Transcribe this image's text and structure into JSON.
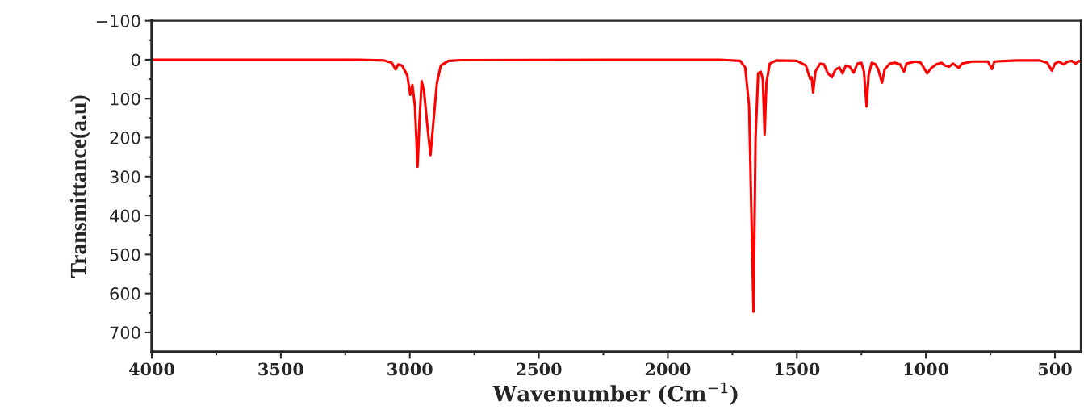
{
  "chart_data": {
    "type": "line",
    "xlabel": "Wavenumber (Cm$^{−1}$)",
    "ylabel": "Transmittance(a.u)",
    "x": [
      4000,
      3200,
      3100,
      3070,
      3055,
      3045,
      3030,
      3010,
      2998,
      2990,
      2980,
      2970,
      2962,
      2954,
      2945,
      2935,
      2920,
      2910,
      2895,
      2880,
      2850,
      2800,
      1800,
      1720,
      1700,
      1685,
      1668,
      1660,
      1650,
      1640,
      1632,
      1625,
      1618,
      1605,
      1580,
      1500,
      1465,
      1449,
      1443,
      1437,
      1428,
      1410,
      1395,
      1380,
      1364,
      1350,
      1335,
      1323,
      1310,
      1295,
      1280,
      1265,
      1250,
      1240,
      1230,
      1222,
      1210,
      1195,
      1185,
      1170,
      1160,
      1140,
      1120,
      1100,
      1085,
      1075,
      1040,
      1020,
      995,
      980,
      960,
      940,
      925,
      910,
      895,
      873,
      860,
      820,
      760,
      744,
      735,
      650,
      560,
      530,
      512,
      500,
      485,
      466,
      450,
      435,
      420,
      405
    ],
    "series": [
      {
        "color": "#ff0000",
        "values": [
          0,
          0,
          2,
          8,
          25,
          12,
          15,
          40,
          90,
          65,
          120,
          275,
          150,
          55,
          80,
          150,
          245,
          170,
          60,
          15,
          3,
          1,
          0,
          3,
          20,
          120,
          647,
          200,
          35,
          31,
          50,
          192,
          60,
          10,
          2,
          3,
          15,
          49,
          45,
          84,
          30,
          10,
          12,
          35,
          45,
          25,
          20,
          35,
          15,
          18,
          33,
          10,
          8,
          30,
          120,
          40,
          8,
          12,
          25,
          59,
          25,
          10,
          8,
          12,
          31,
          10,
          5,
          8,
          35,
          22,
          12,
          8,
          15,
          18,
          10,
          21,
          10,
          5,
          5,
          24,
          5,
          2,
          2,
          8,
          28,
          10,
          5,
          12,
          5,
          3,
          10,
          3
        ]
      }
    ],
    "xlim": [
      4000,
      400
    ],
    "ylim": [
      750,
      -100
    ],
    "xticks": [
      4000,
      {
        "value": 3750,
        "label": null
      },
      3500,
      {
        "value": 3250,
        "label": null
      },
      3000,
      {
        "value": 2750,
        "label": null
      },
      2500,
      {
        "value": 2250,
        "label": null
      },
      2000,
      {
        "value": 1750,
        "label": null
      },
      1500,
      {
        "value": 1250,
        "label": null
      },
      1000,
      {
        "value": 750,
        "label": null
      },
      500
    ],
    "yticks": [
      -100,
      {
        "value": -50,
        "label": null
      },
      0,
      {
        "value": 50,
        "label": null
      },
      100,
      {
        "value": 150,
        "label": null
      },
      200,
      {
        "value": 250,
        "label": null
      },
      300,
      {
        "value": 350,
        "label": null
      },
      400,
      {
        "value": 450,
        "label": null
      },
      500,
      {
        "value": 550,
        "label": null
      },
      600,
      {
        "value": 650,
        "label": null
      },
      700
    ],
    "grid": false,
    "legend": false,
    "marker": "none",
    "line_style": "solid"
  }
}
